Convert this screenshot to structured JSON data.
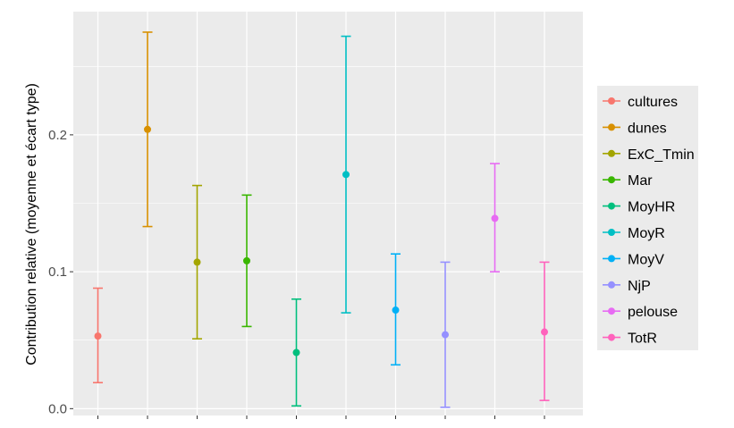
{
  "chart_data": {
    "type": "errorbar",
    "title": "",
    "xlabel": "",
    "ylabel": "Contribution relative (moyenne et écart type)",
    "ylim": [
      -0.005,
      0.29
    ],
    "yticks": [
      0.0,
      0.1,
      0.2
    ],
    "ytick_labels": [
      "0.0",
      "0.1",
      "0.2"
    ],
    "grid": true,
    "legend_position": "right",
    "series": [
      {
        "name": "cultures",
        "color": "#F8766D",
        "mean": 0.053,
        "low": 0.019,
        "high": 0.088
      },
      {
        "name": "dunes",
        "color": "#D89000",
        "mean": 0.204,
        "low": 0.133,
        "high": 0.275
      },
      {
        "name": "ExC_Tmin",
        "color": "#A3A500",
        "mean": 0.107,
        "low": 0.051,
        "high": 0.163
      },
      {
        "name": "Mar",
        "color": "#39B600",
        "mean": 0.108,
        "low": 0.06,
        "high": 0.156
      },
      {
        "name": "MoyHR",
        "color": "#00BF7D",
        "mean": 0.041,
        "low": 0.002,
        "high": 0.08
      },
      {
        "name": "MoyR",
        "color": "#00BFC4",
        "mean": 0.171,
        "low": 0.07,
        "high": 0.272
      },
      {
        "name": "MoyV",
        "color": "#00B0F6",
        "mean": 0.072,
        "low": 0.032,
        "high": 0.113
      },
      {
        "name": "NjP",
        "color": "#9590FF",
        "mean": 0.054,
        "low": 0.001,
        "high": 0.107
      },
      {
        "name": "pelouse",
        "color": "#E76BF3",
        "mean": 0.139,
        "low": 0.1,
        "high": 0.179
      },
      {
        "name": "TotR",
        "color": "#FF62BC",
        "mean": 0.056,
        "low": 0.006,
        "high": 0.107
      }
    ]
  }
}
